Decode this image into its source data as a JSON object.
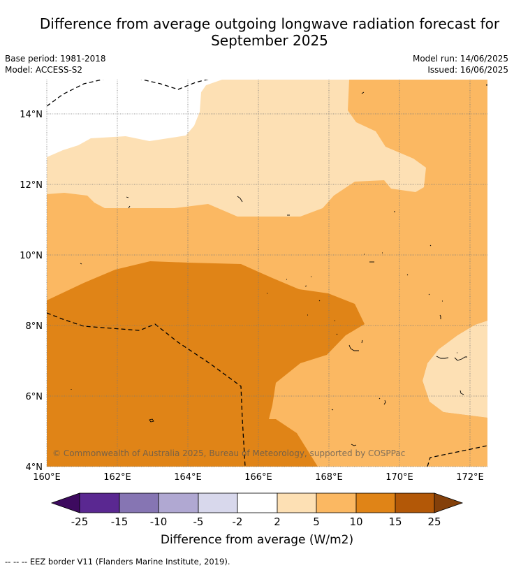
{
  "header": {
    "title_line1": "Difference from average outgoing longwave radiation forecast for",
    "title_line2": "September 2025",
    "base_period": "Base period: 1981-2018",
    "model": "Model: ACCESS-S2",
    "model_run": "Model run: 14/06/2025",
    "issued": "Issued: 16/06/2025"
  },
  "map": {
    "copyright": "© Commonwealth of Australia 2025, Bureau of Meteorology, supported by COSPPac",
    "lat_labels": [
      "4°N",
      "6°N",
      "8°N",
      "10°N",
      "12°N",
      "14°N"
    ],
    "lon_labels": [
      "160°E",
      "162°E",
      "164°E",
      "166°E",
      "168°E",
      "170°E",
      "172°E"
    ],
    "lat_range": [
      4,
      15.0
    ],
    "lon_range": [
      160,
      172.5
    ],
    "grid": true
  },
  "colorbar": {
    "label": "Difference from average (W/m2)",
    "ticks": [
      "-25",
      "-15",
      "-10",
      "-5",
      "-2",
      "2",
      "5",
      "10",
      "15",
      "25"
    ],
    "colors": [
      "#5a2891",
      "#8675b3",
      "#b0a8d2",
      "#d8d8ec",
      "#ffffff",
      "#fde0b4",
      "#fbb862",
      "#e08417",
      "#b35807"
    ],
    "under_color": "#3d0a5f",
    "over_color": "#84400a"
  },
  "footnote": "--  --  -- EEZ border V11 (Flanders Marine Institute, 2019)."
}
